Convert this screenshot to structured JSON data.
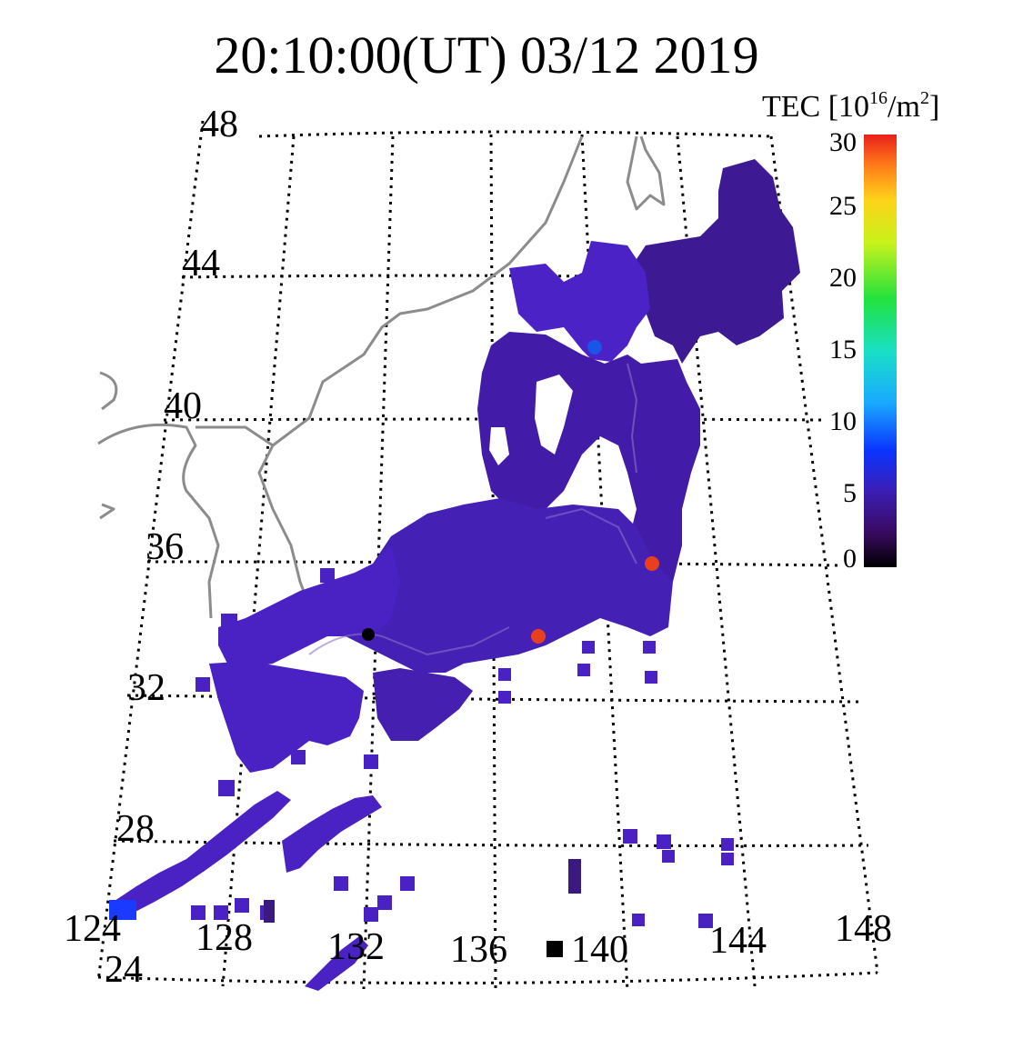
{
  "title": "20:10:00(UT)  03/12 2019",
  "colorbar": {
    "title_prefix": "TEC [10",
    "title_exp": "16",
    "title_mid": "/m",
    "title_exp2": "2",
    "title_suffix": "]",
    "min": 0,
    "max": 30,
    "ticks": [
      "0",
      "5",
      "10",
      "15",
      "20",
      "25",
      "30"
    ]
  },
  "map": {
    "lat_labels": [
      "48",
      "44",
      "40",
      "36",
      "32",
      "28",
      "24"
    ],
    "lon_labels": [
      "124",
      "128",
      "132",
      "136",
      "140",
      "144",
      "148"
    ],
    "extent": {
      "lon_min": 124,
      "lon_max": 148,
      "lat_min": 24,
      "lat_max": 48
    }
  },
  "colors": {
    "land_tec": "#4a1fc4",
    "land_tec_north": "#3d1a93",
    "land_tec_east": "#3f1aa0",
    "coastline": "#8c8c8c",
    "hot_marker": "#e8401e",
    "station_marker": "#000000"
  }
}
